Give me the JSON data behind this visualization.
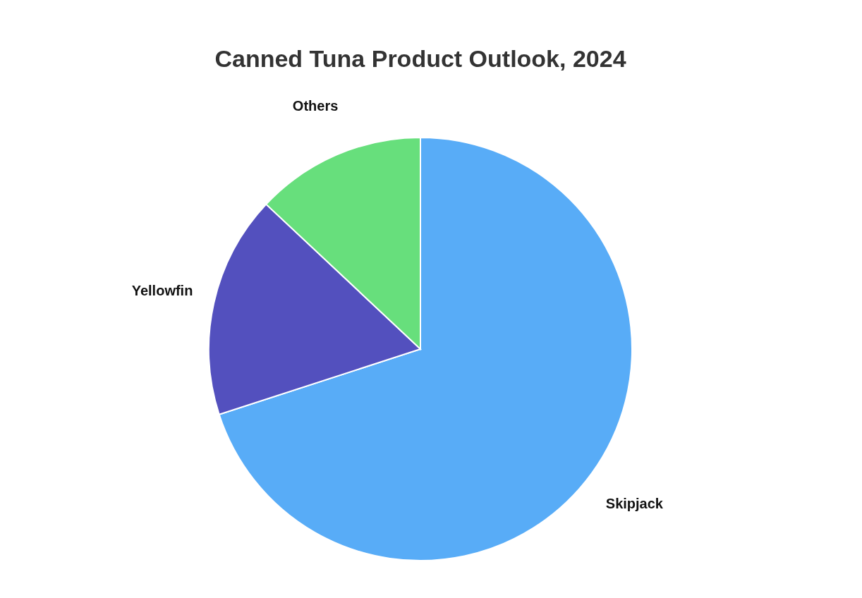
{
  "chart_data": {
    "type": "pie",
    "title": "Canned Tuna Product Outlook, 2024",
    "categories": [
      "Skipjack",
      "Yellowfin",
      "Others"
    ],
    "values": [
      70,
      17,
      13
    ],
    "colors": [
      "#58acf7",
      "#5350be",
      "#67df7c"
    ]
  }
}
